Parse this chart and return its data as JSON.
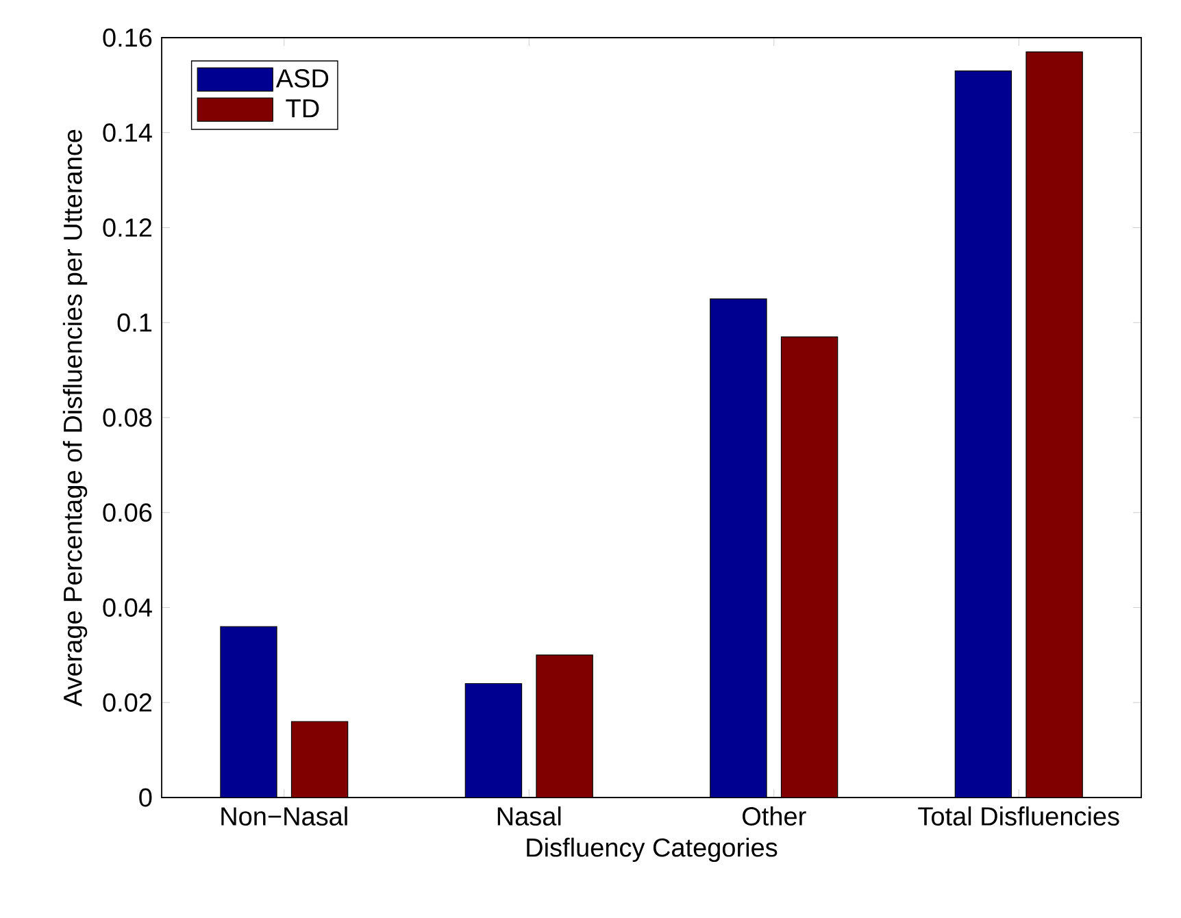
{
  "chart_data": {
    "type": "bar",
    "xlabel": "Disfluency Categories",
    "ylabel": "Average Percentage of Disfluencies per Utterance",
    "categories": [
      "Non−Nasal",
      "Nasal",
      "Other",
      "Total Disfluencies"
    ],
    "series": [
      {
        "name": "ASD",
        "color": "#000090",
        "values": [
          0.036,
          0.024,
          0.105,
          0.153
        ]
      },
      {
        "name": "TD",
        "color": "#800000",
        "values": [
          0.016,
          0.03,
          0.097,
          0.157
        ]
      }
    ],
    "ylim": [
      0,
      0.16
    ],
    "yticks": [
      0,
      0.02,
      0.04,
      0.06,
      0.08,
      0.1,
      0.12,
      0.14,
      0.16
    ],
    "legend": "top left"
  }
}
